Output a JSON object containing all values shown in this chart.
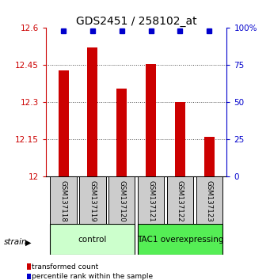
{
  "title": "GDS2451 / 258102_at",
  "samples": [
    "GSM137118",
    "GSM137119",
    "GSM137120",
    "GSM137121",
    "GSM137122",
    "GSM137123"
  ],
  "bar_values": [
    12.43,
    12.52,
    12.355,
    12.455,
    12.3,
    12.16
  ],
  "percentile_values": [
    98,
    98,
    98,
    98,
    98,
    98
  ],
  "bar_color": "#cc0000",
  "dot_color": "#0000cc",
  "ylim_left": [
    12.0,
    12.6
  ],
  "ylim_right": [
    0,
    100
  ],
  "yticks_left": [
    12.0,
    12.15,
    12.3,
    12.45,
    12.6
  ],
  "ytick_labels_left": [
    "12",
    "12.15",
    "12.3",
    "12.45",
    "12.6"
  ],
  "yticks_right": [
    0,
    25,
    50,
    75,
    100
  ],
  "ytick_labels_right": [
    "0",
    "25",
    "50",
    "75",
    "100%"
  ],
  "groups": [
    {
      "label": "control",
      "indices": [
        0,
        1,
        2
      ],
      "color": "#ccffcc"
    },
    {
      "label": "TAC1 overexpressing",
      "indices": [
        3,
        4,
        5
      ],
      "color": "#55ee55"
    }
  ],
  "group_label": "strain",
  "background_color": "#ffffff",
  "sample_box_color": "#cccccc",
  "bar_width": 0.35,
  "dot_size": 5,
  "legend_red_label": "transformed count",
  "legend_blue_label": "percentile rank within the sample"
}
